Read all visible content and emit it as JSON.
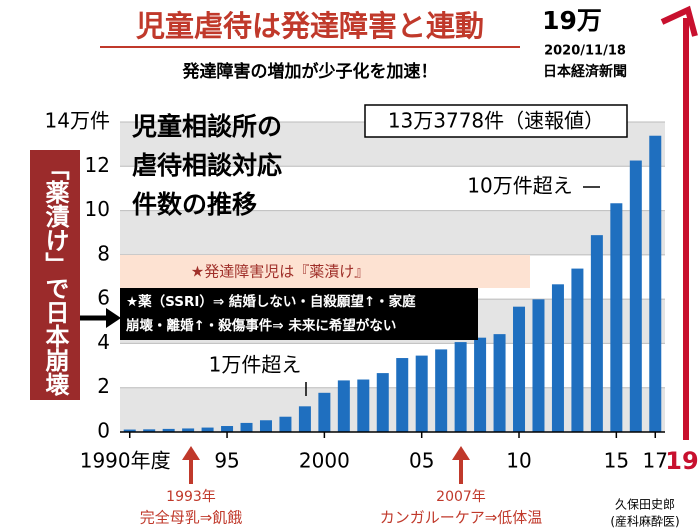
{
  "chart_data": {
    "type": "bar",
    "title": "児童虐待は発達障害と連動",
    "subtitle": "発達障害の増加が少子化を加速！",
    "top_figure": "19万",
    "date": "2020/11/18",
    "source": "日本経済新聞",
    "heading": [
      "児童相談所の",
      "虐待相談対応",
      "件数の推移"
    ],
    "callouts": [
      "13万3778件（速報値）",
      "10万件超え",
      "1万件超え"
    ],
    "pink_note": "★発達障害児は『薬漬け』",
    "black_note": [
      "★薬（SSRI）⇒ 結婚しない・自殺願望↑・家庭",
      "崩壊・離婚↑・殺傷事件⇒ 未来に希望がない"
    ],
    "side_label": "「薬漬け」で日本崩壊",
    "bottom_notes": [
      {
        "year": "1993年",
        "text": "完全母乳⇒飢餓"
      },
      {
        "year": "2007年",
        "text": "カンガルーケア⇒低体温"
      }
    ],
    "author": [
      "久保田史郎",
      "(産科麻酔医)"
    ],
    "right_label": "19",
    "categories": [
      "1990年度",
      null,
      null,
      null,
      null,
      "95",
      null,
      null,
      null,
      null,
      "2000",
      null,
      null,
      null,
      null,
      "05",
      null,
      null,
      null,
      null,
      "10",
      null,
      null,
      null,
      null,
      "15",
      null,
      "17"
    ],
    "values": [
      0.11,
      0.12,
      0.14,
      0.16,
      0.2,
      0.27,
      0.41,
      0.53,
      0.69,
      1.16,
      1.77,
      2.33,
      2.37,
      2.66,
      3.34,
      3.45,
      3.73,
      4.06,
      4.26,
      4.42,
      5.66,
      5.99,
      6.67,
      7.38,
      8.89,
      10.33,
      12.26,
      13.38
    ],
    "color": "#1f6fbf",
    "ylim": [
      0,
      14
    ],
    "yticks": [
      0,
      2,
      4,
      6,
      8,
      10,
      12,
      {
        "value": 14,
        "label": "14万件"
      }
    ],
    "grid": true
  }
}
